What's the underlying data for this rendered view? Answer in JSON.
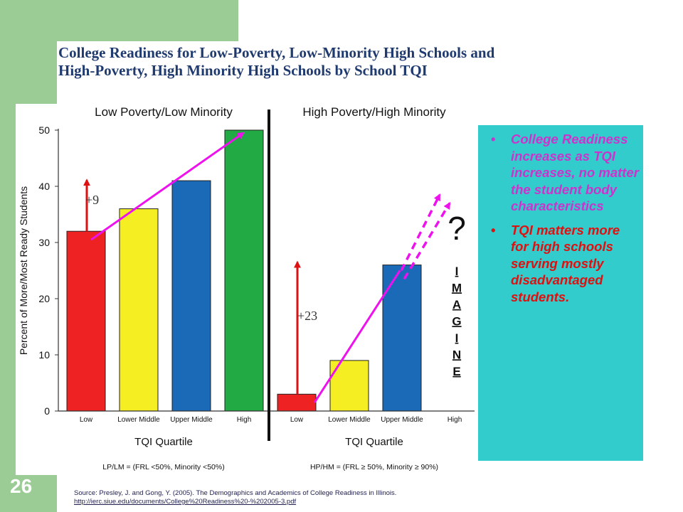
{
  "slide": {
    "title_line1": "College Readiness for Low-Poverty, Low-Minority High Schools and",
    "title_line2": "High-Poverty, High Minority High Schools by School TQI",
    "page_number": "26",
    "source_line1": "Source: Presley, J. and Gong, Y. (2005). The Demographics and Academics of College Readiness in Illinois.",
    "source_url": "http://ierc.siue.edu/documents/College%20Readiness%20-%202005-3.pdf"
  },
  "bullets": [
    {
      "text": "College Readiness increases as TQI increases, no matter the student body characteristics",
      "color": "#cc33cc"
    },
    {
      "text": "TQI matters more for high schools serving mostly disadvantaged students.",
      "color": "#e01010"
    }
  ],
  "chart_data": {
    "type": "bar",
    "ylabel": "Percent of More/Most Ready Students",
    "ylim": [
      0,
      50
    ],
    "yticks": [
      "0",
      "10",
      "20",
      "30",
      "40",
      "50"
    ],
    "grid": false,
    "panels": [
      {
        "title": "Low Poverty/Low Minority",
        "categories": [
          "Low",
          "Lower Middle",
          "Upper Middle",
          "High"
        ],
        "values": [
          32,
          36,
          41,
          50
        ],
        "colors": [
          "#ee2222",
          "#f4ee22",
          "#1a6ab8",
          "#22aa44"
        ],
        "xlabel": "TQI Quartile",
        "footnote": "LP/LM = (FRL <50%, Minority <50%)",
        "annotation": "+9"
      },
      {
        "title": "High Poverty/High Minority",
        "categories": [
          "Low",
          "Lower Middle",
          "Upper Middle",
          "High"
        ],
        "values": [
          3,
          9,
          26,
          null
        ],
        "colors": [
          "#ee2222",
          "#f4ee22",
          "#1a6ab8",
          "#22aa44"
        ],
        "xlabel": "TQI Quartile",
        "footnote": "HP/HM = (FRL ≥ 50%, Minority ≥ 90%)",
        "annotation": "+23"
      }
    ],
    "callout_question": "?",
    "callout_word": "IMAGINE",
    "colors": {
      "arrow_magenta": "#ee11ee",
      "arrow_red": "#dd1111"
    }
  }
}
